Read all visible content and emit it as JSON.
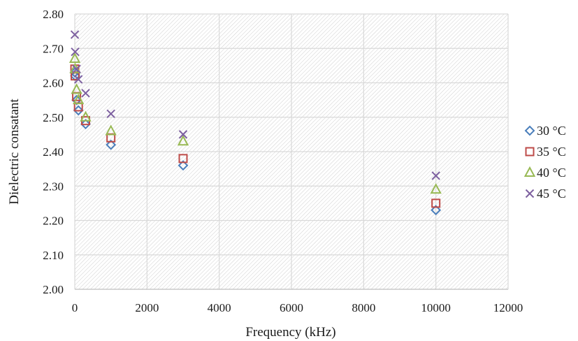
{
  "chart_data": {
    "type": "scatter",
    "title": "",
    "xlabel": "Frequency (kHz)",
    "ylabel": "Dielectric consatant",
    "xlim": [
      0,
      12000
    ],
    "ylim": [
      2.0,
      2.8
    ],
    "x_ticks": [
      "0",
      "2000",
      "4000",
      "6000",
      "8000",
      "10000",
      "12000"
    ],
    "y_ticks": [
      "2.00",
      "2.10",
      "2.20",
      "2.30",
      "2.40",
      "2.50",
      "2.60",
      "2.70",
      "2.80"
    ],
    "grid": true,
    "legend_position": "right",
    "series": [
      {
        "name": "30 °C",
        "marker": "diamond",
        "color": "#4a7ebb",
        "x": [
          1,
          10,
          50,
          100,
          300,
          1000,
          3000,
          10000
        ],
        "y": [
          2.63,
          2.62,
          2.55,
          2.52,
          2.48,
          2.42,
          2.36,
          2.23
        ]
      },
      {
        "name": "35 °C",
        "marker": "square",
        "color": "#be4b48",
        "x": [
          1,
          10,
          50,
          100,
          300,
          1000,
          3000,
          10000
        ],
        "y": [
          2.64,
          2.62,
          2.56,
          2.53,
          2.49,
          2.44,
          2.38,
          2.25
        ]
      },
      {
        "name": "40 °C",
        "marker": "triangle",
        "color": "#98b954",
        "x": [
          1,
          10,
          50,
          100,
          300,
          1000,
          3000,
          10000
        ],
        "y": [
          2.67,
          2.64,
          2.58,
          2.55,
          2.5,
          2.46,
          2.43,
          2.29
        ]
      },
      {
        "name": "45 °C",
        "marker": "x",
        "color": "#7d60a0",
        "x": [
          1,
          10,
          50,
          100,
          300,
          1000,
          3000,
          10000
        ],
        "y": [
          2.74,
          2.69,
          2.64,
          2.61,
          2.57,
          2.51,
          2.45,
          2.33
        ]
      }
    ]
  }
}
